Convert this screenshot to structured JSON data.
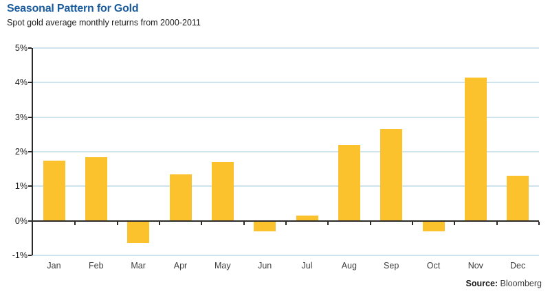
{
  "header": {
    "title": "Seasonal Pattern for Gold",
    "subtitle": "Spot gold average monthly returns from 2000-2011"
  },
  "footer": {
    "source_label": "Source:",
    "source_value": "Bloomberg"
  },
  "colors": {
    "title_blue": "#1A5B9E",
    "bar_gold": "#FCC22E",
    "gridline_blue": "#CEE3EB",
    "axis_dark": "#2B2A29"
  },
  "chart_data": {
    "type": "bar",
    "title": "Seasonal Pattern for Gold",
    "subtitle": "Spot gold average monthly returns from 2000-2011",
    "categories": [
      "Jan",
      "Feb",
      "Mar",
      "Apr",
      "May",
      "Jun",
      "Jul",
      "Aug",
      "Sep",
      "Oct",
      "Nov",
      "Dec"
    ],
    "values": [
      1.75,
      1.85,
      -0.65,
      1.35,
      1.7,
      -0.3,
      0.15,
      2.2,
      2.65,
      -0.3,
      4.15,
      1.3
    ],
    "xlabel": "",
    "ylabel": "",
    "ylim": [
      -1,
      5
    ],
    "yticks": [
      {
        "value": 5,
        "label": "5%"
      },
      {
        "value": 4,
        "label": "4%"
      },
      {
        "value": 3,
        "label": "3%"
      },
      {
        "value": 2,
        "label": "2%"
      },
      {
        "value": 1,
        "label": "1%"
      },
      {
        "value": 0,
        "label": "0%"
      },
      {
        "value": -1,
        "label": "-1%"
      }
    ],
    "grid": true,
    "legend": false,
    "source": "Source: Bloomberg"
  }
}
